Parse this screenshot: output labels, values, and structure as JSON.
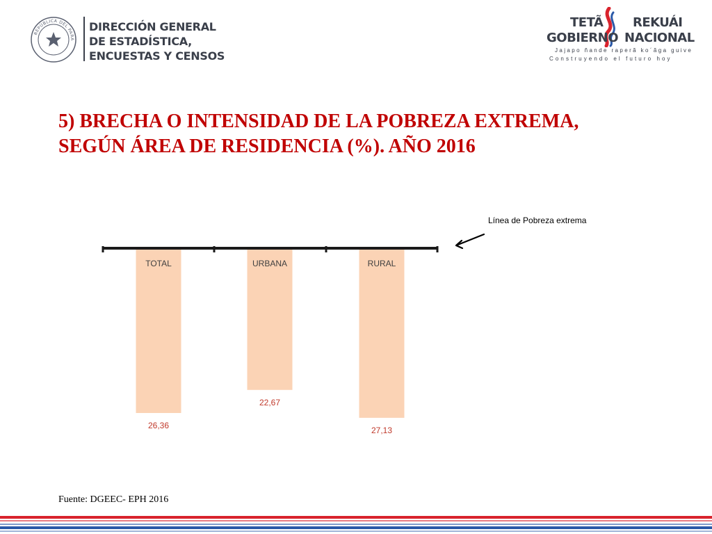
{
  "header": {
    "left_logo": {
      "seal_text": "REPÚBLICA DEL PARAGUAY",
      "org_lines": [
        "DIRECCIÓN GENERAL",
        "DE ESTADÍSTICA,",
        "ENCUESTAS Y CENSOS"
      ]
    },
    "right_logo": {
      "line1_a": "TETÃ",
      "line1_b": "REKUÁI",
      "line2_a": "GOBIERNO",
      "line2_b": "NACIONAL",
      "tagline_guarani": "Jajapo ñande raperã ko´ãga guive",
      "tagline_spanish": "Construyendo el futuro hoy"
    }
  },
  "slide": {
    "title_line1": "5) BRECHA O INTENSIDAD DE LA POBREZA EXTREMA,",
    "title_line2": "SEGÚN ÁREA DE RESIDENCIA (%). AÑO 2016",
    "annotation": "Línea de Pobreza extrema",
    "source": "Fuente: DGEEC-  EPH 2016"
  },
  "chart_data": {
    "type": "bar",
    "orientation": "vertical, bars hang below the baseline",
    "categories": [
      "TOTAL",
      "URBANA",
      "RURAL"
    ],
    "values": [
      26.36,
      22.67,
      27.13
    ],
    "value_labels": [
      "26,36",
      "22,67",
      "27,13"
    ],
    "grid": false,
    "legend": "none",
    "colors": {
      "bar": "#fbd3b5",
      "baseline": "#1a1a1a",
      "category_label": "#404040",
      "value_label": "#c0392b"
    }
  },
  "colors": {
    "title": "#c00000",
    "stripe_red": "#d9232d",
    "stripe_blue": "#2b59a8"
  }
}
